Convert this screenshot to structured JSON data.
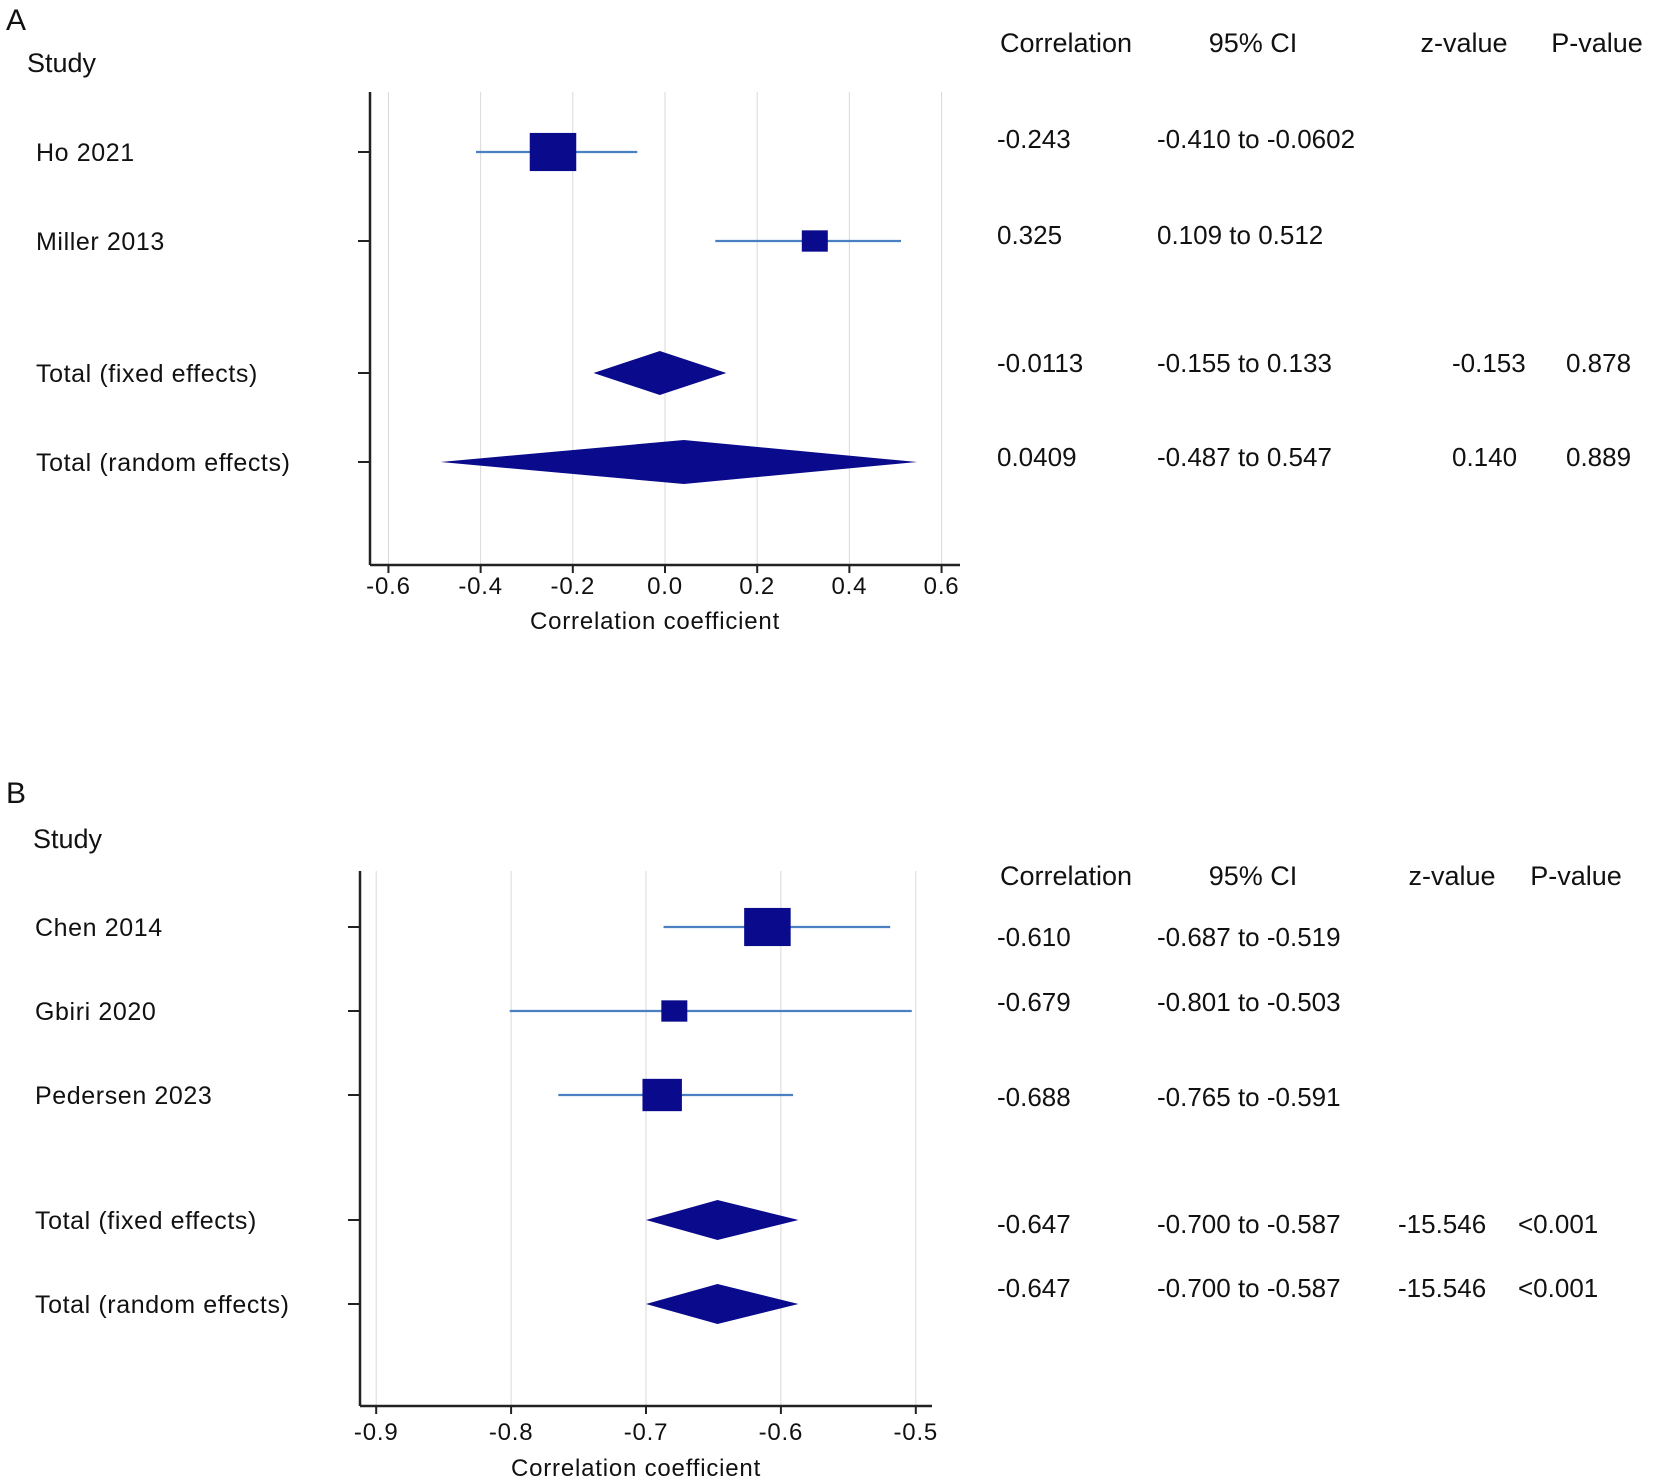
{
  "chart_data": [
    {
      "type": "forest",
      "panel": "A",
      "study_header": "Study",
      "xlabel": "Correlation coefficient",
      "xlim": [
        -0.64,
        0.64
      ],
      "ticks": [
        -0.6,
        -0.4,
        -0.2,
        0.0,
        0.2,
        0.4,
        0.6
      ],
      "tick_labels": [
        "-0.6",
        "-0.4",
        "-0.2",
        "0.0",
        "0.2",
        "0.4",
        "0.6"
      ],
      "grid": true,
      "marker_color": "#0a0a8c",
      "ci_color": "#4a7fc1",
      "table_headers": [
        "Correlation",
        "95% CI",
        "z-value",
        "P-value"
      ],
      "rows": [
        {
          "label": "Ho 2021",
          "kind": "study",
          "estimate": -0.243,
          "ci_low": -0.41,
          "ci_high": -0.0602,
          "weight": 3.2,
          "correlation": "-0.243",
          "ci_text": "-0.410 to -0.0602",
          "z": "",
          "p": ""
        },
        {
          "label": "Miller 2013",
          "kind": "study",
          "estimate": 0.325,
          "ci_low": 0.109,
          "ci_high": 0.512,
          "weight": 1.0,
          "correlation": "0.325",
          "ci_text": "0.109 to 0.512",
          "z": "",
          "p": ""
        },
        {
          "label": "Total (fixed effects)",
          "kind": "summary",
          "estimate": -0.0113,
          "ci_low": -0.155,
          "ci_high": 0.133,
          "correlation": "-0.0113",
          "ci_text": "-0.155 to 0.133",
          "z": "-0.153",
          "p": "0.878"
        },
        {
          "label": "Total (random effects)",
          "kind": "summary",
          "estimate": 0.0409,
          "ci_low": -0.487,
          "ci_high": 0.547,
          "correlation": "0.0409",
          "ci_text": "-0.487 to 0.547",
          "z": "0.140",
          "p": "0.889"
        }
      ]
    },
    {
      "type": "forest",
      "panel": "B",
      "study_header": "Study",
      "xlabel": "Correlation coefficient",
      "xlim": [
        -0.912,
        -0.488
      ],
      "ticks": [
        -0.9,
        -0.8,
        -0.7,
        -0.6,
        -0.5
      ],
      "tick_labels": [
        "-0.9",
        "-0.8",
        "-0.7",
        "-0.6",
        "-0.5"
      ],
      "grid": true,
      "marker_color": "#0a0a8c",
      "ci_color": "#4a7fc1",
      "table_headers": [
        "Correlation",
        "95% CI",
        "z-value",
        "P-value"
      ],
      "rows": [
        {
          "label": "Chen 2014",
          "kind": "study",
          "estimate": -0.61,
          "ci_low": -0.687,
          "ci_high": -0.519,
          "weight": 3.2,
          "correlation": "-0.610",
          "ci_text": "-0.687 to -0.519",
          "z": "",
          "p": ""
        },
        {
          "label": "Gbiri 2020",
          "kind": "study",
          "estimate": -0.679,
          "ci_low": -0.801,
          "ci_high": -0.503,
          "weight": 1.0,
          "correlation": "-0.679",
          "ci_text": "-0.801 to -0.503",
          "z": "",
          "p": ""
        },
        {
          "label": "Pedersen 2023",
          "kind": "study",
          "estimate": -0.688,
          "ci_low": -0.765,
          "ci_high": -0.591,
          "weight": 2.3,
          "correlation": "-0.688",
          "ci_text": "-0.765 to -0.591",
          "z": "",
          "p": ""
        },
        {
          "label": "Total (fixed effects)",
          "kind": "summary",
          "estimate": -0.647,
          "ci_low": -0.7,
          "ci_high": -0.587,
          "correlation": "-0.647",
          "ci_text": "-0.700 to -0.587",
          "z": "-15.546",
          "p": "<0.001"
        },
        {
          "label": "Total (random effects)",
          "kind": "summary",
          "estimate": -0.647,
          "ci_low": -0.7,
          "ci_high": -0.587,
          "correlation": "-0.647",
          "ci_text": "-0.700 to -0.587",
          "z": "-15.546",
          "p": "<0.001"
        }
      ]
    }
  ]
}
